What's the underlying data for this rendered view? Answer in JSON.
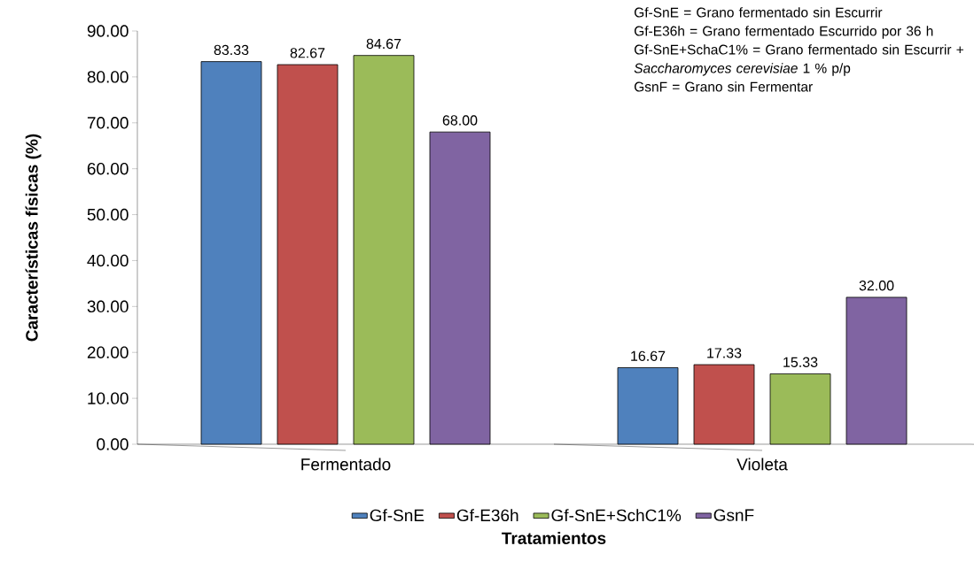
{
  "chart_data": {
    "type": "bar",
    "xlabel": "Tratamientos",
    "ylabel": "Características físicas (%)",
    "categories": [
      "Fermentado",
      "Violeta"
    ],
    "series": [
      {
        "name": "Gf-SnE",
        "color": "#4f81bd",
        "values": [
          83.33,
          16.67
        ],
        "value_labels": [
          "83.33",
          "16.67"
        ]
      },
      {
        "name": "Gf-E36h",
        "color": "#c0504d",
        "values": [
          82.67,
          17.33
        ],
        "value_labels": [
          "82.67",
          "17.33"
        ]
      },
      {
        "name": "Gf-SnE+SchC1%",
        "color": "#9bbb59",
        "values": [
          84.67,
          15.33
        ],
        "value_labels": [
          "84.67",
          "15.33"
        ]
      },
      {
        "name": "GsnF",
        "color": "#8064a2",
        "values": [
          68.0,
          32.0
        ],
        "value_labels": [
          "68.00",
          "32.00"
        ]
      }
    ],
    "ylim": [
      0,
      90
    ],
    "yticks": [
      {
        "value": 0,
        "label": "0.00"
      },
      {
        "value": 10,
        "label": "10.00"
      },
      {
        "value": 20,
        "label": "20.00"
      },
      {
        "value": 30,
        "label": "30.00"
      },
      {
        "value": 40,
        "label": "40.00"
      },
      {
        "value": 50,
        "label": "50.00"
      },
      {
        "value": 60,
        "label": "60.00"
      },
      {
        "value": 70,
        "label": "70.00"
      },
      {
        "value": 80,
        "label": "80.00"
      },
      {
        "value": 90,
        "label": "90.00"
      }
    ],
    "legend": "bottom",
    "annotations": [
      "Gf-SnE = Grano fermentado sin Escurrir",
      "Gf-E36h = Grano fermentado Escurrido por 36 h",
      "Gf-SnE+SchaC1% = Grano fermentado sin Escurrir + *Saccharomyces cerevisiae* 1 % p/p",
      "GsnF = Grano sin Fermentar"
    ]
  }
}
